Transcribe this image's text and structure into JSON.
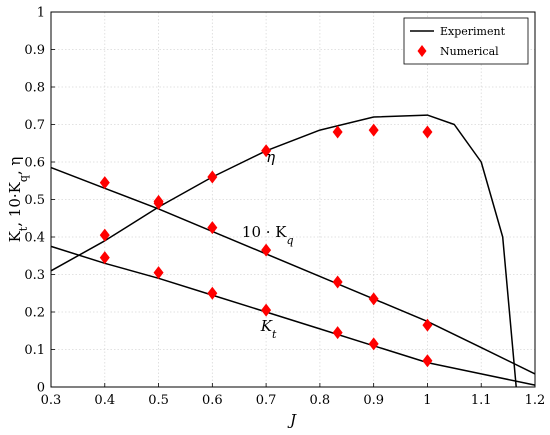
{
  "chart_data": {
    "type": "line",
    "xlabel": "J",
    "ylabel": "K_t, 10·K_q, η",
    "xlim": [
      0.3,
      1.2
    ],
    "ylim": [
      0,
      1
    ],
    "xticks": [
      "0.3",
      "0.4",
      "0.5",
      "0.6",
      "0.7",
      "0.8",
      "0.9",
      "1",
      "1.1",
      "1.2"
    ],
    "yticks": [
      "0",
      "0.1",
      "0.2",
      "0.3",
      "0.4",
      "0.5",
      "0.6",
      "0.7",
      "0.8",
      "0.9",
      "1"
    ],
    "grid": true,
    "legend_position": "top-right",
    "legend": [
      {
        "label": "Experiment",
        "marker": "line",
        "color": "#000000"
      },
      {
        "label": "Numerical",
        "marker": "diamond",
        "color": "#ff0000"
      }
    ],
    "curve_labels": [
      {
        "text": "η",
        "x": 0.7,
        "y": 0.6,
        "italic": true
      },
      {
        "text": "10 · K_q",
        "x": 0.655,
        "y": 0.4,
        "italic": false
      },
      {
        "text": "K_t",
        "x": 0.69,
        "y": 0.15,
        "italic": true
      }
    ],
    "series": [
      {
        "name": "Experiment",
        "kind": "line",
        "color": "#000000",
        "curves": [
          {
            "label": "η",
            "x": [
              0.3,
              0.4,
              0.5,
              0.6,
              0.7,
              0.8,
              0.9,
              1.0,
              1.05,
              1.1,
              1.14,
              1.165
            ],
            "y": [
              0.31,
              0.39,
              0.48,
              0.56,
              0.63,
              0.685,
              0.72,
              0.725,
              0.7,
              0.6,
              0.4,
              0.0
            ]
          },
          {
            "label": "10·K_q",
            "x": [
              0.3,
              0.4,
              0.5,
              0.6,
              0.7,
              0.8,
              0.9,
              1.0,
              1.1,
              1.2
            ],
            "y": [
              0.585,
              0.53,
              0.475,
              0.415,
              0.355,
              0.295,
              0.235,
              0.175,
              0.105,
              0.035
            ]
          },
          {
            "label": "K_t",
            "x": [
              0.3,
              0.4,
              0.5,
              0.6,
              0.7,
              0.8,
              0.9,
              1.0,
              1.1,
              1.2
            ],
            "y": [
              0.375,
              0.33,
              0.29,
              0.245,
              0.2,
              0.155,
              0.11,
              0.065,
              0.035,
              0.005
            ]
          }
        ]
      },
      {
        "name": "Numerical",
        "kind": "scatter",
        "marker": "diamond",
        "color": "#ff0000",
        "groups": [
          {
            "label": "η",
            "x": [
              0.4,
              0.5,
              0.6,
              0.7,
              0.833,
              0.9,
              1.0
            ],
            "y": [
              0.545,
              0.495,
              0.56,
              0.63,
              0.68,
              0.685,
              0.68
            ]
          },
          {
            "label": "10·K_q",
            "x": [
              0.4,
              0.5,
              0.6,
              0.7,
              0.833,
              0.9,
              1.0
            ],
            "y": [
              0.405,
              0.49,
              0.425,
              0.365,
              0.28,
              0.235,
              0.165
            ]
          },
          {
            "label": "K_t",
            "x": [
              0.4,
              0.5,
              0.6,
              0.7,
              0.833,
              0.9,
              1.0
            ],
            "y": [
              0.345,
              0.305,
              0.25,
              0.205,
              0.145,
              0.115,
              0.07
            ]
          }
        ]
      }
    ]
  }
}
